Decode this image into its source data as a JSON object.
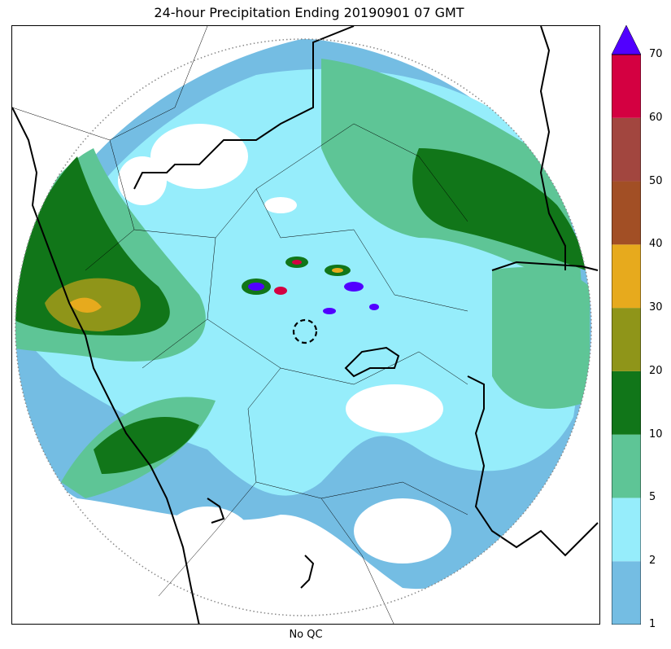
{
  "title": "24-hour Precipitation Ending 20190901 07 GMT",
  "xlabel": "No QC",
  "colorbar": {
    "levels": [
      "1",
      "2",
      "5",
      "10",
      "20",
      "30",
      "40",
      "50",
      "60",
      "70"
    ],
    "colors": [
      "#74bde3",
      "#96edfb",
      "#5ec596",
      "#117619",
      "#8f9519",
      "#e7aa1d",
      "#a24f25",
      "#a2463f",
      "#d40041"
    ],
    "over_color": "#5100ff"
  },
  "map": {
    "radar_ring": "dotted",
    "center_ring": "dashed"
  }
}
